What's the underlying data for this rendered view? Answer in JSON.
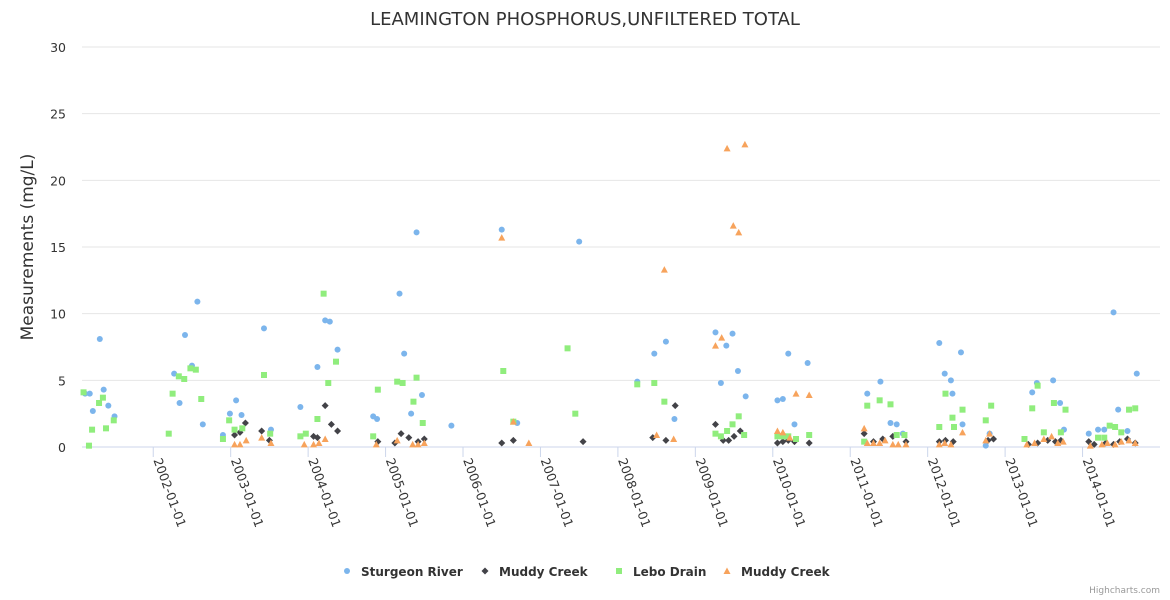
{
  "chart_data": {
    "type": "scatter",
    "title": "LEAMINGTON PHOSPHORUS,UNFILTERED TOTAL",
    "ylabel": "Measurements (mg/L)",
    "xlabel": "",
    "ylim": [
      0,
      30
    ],
    "y_ticks": [
      "0",
      "5",
      "10",
      "15",
      "20",
      "25",
      "30"
    ],
    "y_tick_values": [
      0,
      5,
      10,
      15,
      20,
      25,
      30
    ],
    "x_range": [
      2001.08,
      2015.0
    ],
    "x_ticks": [
      "2002-01-01",
      "2003-01-01",
      "2004-01-01",
      "2005-01-01",
      "2006-01-01",
      "2007-01-01",
      "2008-01-01",
      "2009-01-01",
      "2010-01-01",
      "2011-01-01",
      "2012-01-01",
      "2013-01-01",
      "2014-01-01"
    ],
    "x_tick_values": [
      2002,
      2003,
      2004,
      2005,
      2006,
      2007,
      2008,
      2009,
      2010,
      2011,
      2012,
      2013,
      2014
    ],
    "legend_position": "bottom-center",
    "credits": "Highcharts.com",
    "series": [
      {
        "name": "Sturgeon River",
        "color": "#7cb5ec",
        "marker": "circle",
        "points": [
          [
            2001.12,
            4.0
          ],
          [
            2001.18,
            4.0
          ],
          [
            2001.22,
            2.7
          ],
          [
            2001.31,
            8.1
          ],
          [
            2001.36,
            4.3
          ],
          [
            2001.42,
            3.1
          ],
          [
            2001.5,
            2.3
          ],
          [
            2002.27,
            5.5
          ],
          [
            2002.34,
            3.3
          ],
          [
            2002.41,
            8.4
          ],
          [
            2002.5,
            6.1
          ],
          [
            2002.57,
            10.9
          ],
          [
            2002.64,
            1.7
          ],
          [
            2002.9,
            0.9
          ],
          [
            2002.99,
            2.5
          ],
          [
            2003.07,
            3.5
          ],
          [
            2003.14,
            2.4
          ],
          [
            2003.43,
            8.9
          ],
          [
            2003.52,
            1.3
          ],
          [
            2003.9,
            3.0
          ],
          [
            2004.12,
            6.0
          ],
          [
            2004.22,
            9.5
          ],
          [
            2004.28,
            9.4
          ],
          [
            2004.38,
            7.3
          ],
          [
            2004.84,
            2.3
          ],
          [
            2004.89,
            2.1
          ],
          [
            2005.18,
            11.5
          ],
          [
            2005.24,
            7.0
          ],
          [
            2005.33,
            2.5
          ],
          [
            2005.4,
            16.1
          ],
          [
            2005.47,
            3.9
          ],
          [
            2005.85,
            1.6
          ],
          [
            2006.5,
            16.3
          ],
          [
            2006.7,
            1.8
          ],
          [
            2007.5,
            15.4
          ],
          [
            2008.25,
            4.9
          ],
          [
            2008.47,
            7.0
          ],
          [
            2008.62,
            7.9
          ],
          [
            2008.73,
            2.1
          ],
          [
            2009.26,
            8.6
          ],
          [
            2009.33,
            4.8
          ],
          [
            2009.4,
            7.6
          ],
          [
            2009.48,
            8.5
          ],
          [
            2009.55,
            5.7
          ],
          [
            2009.65,
            3.8
          ],
          [
            2010.06,
            3.5
          ],
          [
            2010.13,
            3.6
          ],
          [
            2010.2,
            7.0
          ],
          [
            2010.28,
            1.7
          ],
          [
            2010.45,
            6.3
          ],
          [
            2011.22,
            4.0
          ],
          [
            2011.39,
            4.9
          ],
          [
            2011.52,
            1.8
          ],
          [
            2011.6,
            1.7
          ],
          [
            2011.68,
            1.0
          ],
          [
            2012.15,
            7.8
          ],
          [
            2012.22,
            5.5
          ],
          [
            2012.3,
            5.0
          ],
          [
            2012.32,
            4.0
          ],
          [
            2012.43,
            7.1
          ],
          [
            2012.45,
            1.7
          ],
          [
            2012.75,
            0.1
          ],
          [
            2012.8,
            1.0
          ],
          [
            2013.35,
            4.1
          ],
          [
            2013.41,
            4.8
          ],
          [
            2013.62,
            5.0
          ],
          [
            2013.71,
            3.3
          ],
          [
            2013.76,
            1.3
          ],
          [
            2014.08,
            1.0
          ],
          [
            2014.2,
            1.3
          ],
          [
            2014.28,
            1.3
          ],
          [
            2014.4,
            10.1
          ],
          [
            2014.46,
            2.8
          ],
          [
            2014.58,
            1.2
          ],
          [
            2014.7,
            5.5
          ]
        ]
      },
      {
        "name": "Muddy Creek",
        "color": "#434348",
        "marker": "diamond",
        "points": [
          [
            2003.05,
            0.9
          ],
          [
            2003.12,
            1.1
          ],
          [
            2003.19,
            1.8
          ],
          [
            2003.4,
            1.2
          ],
          [
            2003.5,
            0.5
          ],
          [
            2004.07,
            0.8
          ],
          [
            2004.12,
            0.7
          ],
          [
            2004.22,
            3.1
          ],
          [
            2004.3,
            1.7
          ],
          [
            2004.38,
            1.2
          ],
          [
            2004.9,
            0.4
          ],
          [
            2005.12,
            0.3
          ],
          [
            2005.2,
            1.0
          ],
          [
            2005.3,
            0.7
          ],
          [
            2005.42,
            0.4
          ],
          [
            2005.5,
            0.6
          ],
          [
            2006.5,
            0.3
          ],
          [
            2006.65,
            0.5
          ],
          [
            2007.55,
            0.4
          ],
          [
            2008.45,
            0.7
          ],
          [
            2008.62,
            0.5
          ],
          [
            2008.74,
            3.1
          ],
          [
            2009.26,
            1.7
          ],
          [
            2009.36,
            0.5
          ],
          [
            2009.43,
            0.5
          ],
          [
            2009.5,
            0.8
          ],
          [
            2009.58,
            1.2
          ],
          [
            2010.06,
            0.3
          ],
          [
            2010.13,
            0.4
          ],
          [
            2010.2,
            0.5
          ],
          [
            2010.28,
            0.4
          ],
          [
            2010.47,
            0.3
          ],
          [
            2011.18,
            1.0
          ],
          [
            2011.3,
            0.4
          ],
          [
            2011.42,
            0.6
          ],
          [
            2011.55,
            0.8
          ],
          [
            2011.72,
            0.4
          ],
          [
            2012.15,
            0.4
          ],
          [
            2012.23,
            0.5
          ],
          [
            2012.33,
            0.4
          ],
          [
            2012.78,
            0.5
          ],
          [
            2012.85,
            0.6
          ],
          [
            2013.3,
            0.2
          ],
          [
            2013.42,
            0.3
          ],
          [
            2013.55,
            0.5
          ],
          [
            2013.65,
            0.4
          ],
          [
            2013.72,
            0.5
          ],
          [
            2014.08,
            0.4
          ],
          [
            2014.15,
            0.2
          ],
          [
            2014.3,
            0.3
          ],
          [
            2014.4,
            0.2
          ],
          [
            2014.48,
            0.4
          ],
          [
            2014.58,
            0.6
          ],
          [
            2014.68,
            0.3
          ]
        ]
      },
      {
        "name": "Lebo Drain",
        "color": "#90ed7d",
        "marker": "square",
        "points": [
          [
            2001.1,
            4.1
          ],
          [
            2001.17,
            0.1
          ],
          [
            2001.21,
            1.3
          ],
          [
            2001.3,
            3.3
          ],
          [
            2001.35,
            3.7
          ],
          [
            2001.39,
            1.4
          ],
          [
            2001.49,
            2.0
          ],
          [
            2002.2,
            1.0
          ],
          [
            2002.25,
            4.0
          ],
          [
            2002.33,
            5.3
          ],
          [
            2002.4,
            5.1
          ],
          [
            2002.48,
            5.9
          ],
          [
            2002.55,
            5.8
          ],
          [
            2002.62,
            3.6
          ],
          [
            2002.9,
            0.6
          ],
          [
            2002.98,
            2.0
          ],
          [
            2003.05,
            1.3
          ],
          [
            2003.15,
            1.4
          ],
          [
            2003.43,
            5.4
          ],
          [
            2003.51,
            1.0
          ],
          [
            2003.9,
            0.8
          ],
          [
            2003.97,
            1.0
          ],
          [
            2004.12,
            2.1
          ],
          [
            2004.2,
            11.5
          ],
          [
            2004.26,
            4.8
          ],
          [
            2004.36,
            6.4
          ],
          [
            2004.84,
            0.8
          ],
          [
            2004.9,
            4.3
          ],
          [
            2005.15,
            4.9
          ],
          [
            2005.22,
            4.8
          ],
          [
            2005.36,
            3.4
          ],
          [
            2005.4,
            5.2
          ],
          [
            2005.48,
            1.8
          ],
          [
            2006.52,
            5.7
          ],
          [
            2006.65,
            1.9
          ],
          [
            2007.35,
            7.4
          ],
          [
            2007.45,
            2.5
          ],
          [
            2008.25,
            4.7
          ],
          [
            2008.47,
            4.8
          ],
          [
            2008.6,
            3.4
          ],
          [
            2009.26,
            1.0
          ],
          [
            2009.33,
            0.8
          ],
          [
            2009.41,
            1.2
          ],
          [
            2009.48,
            1.7
          ],
          [
            2009.56,
            2.3
          ],
          [
            2009.63,
            0.9
          ],
          [
            2010.06,
            0.8
          ],
          [
            2010.13,
            0.8
          ],
          [
            2010.2,
            0.8
          ],
          [
            2010.3,
            0.6
          ],
          [
            2010.47,
            0.9
          ],
          [
            2011.18,
            0.4
          ],
          [
            2011.22,
            3.1
          ],
          [
            2011.38,
            3.5
          ],
          [
            2011.52,
            3.2
          ],
          [
            2011.6,
            0.9
          ],
          [
            2011.7,
            0.9
          ],
          [
            2012.15,
            1.5
          ],
          [
            2012.23,
            4.0
          ],
          [
            2012.32,
            2.2
          ],
          [
            2012.34,
            1.5
          ],
          [
            2012.45,
            2.8
          ],
          [
            2012.75,
            2.0
          ],
          [
            2012.82,
            3.1
          ],
          [
            2013.25,
            0.6
          ],
          [
            2013.35,
            2.9
          ],
          [
            2013.42,
            4.6
          ],
          [
            2013.5,
            1.1
          ],
          [
            2013.63,
            3.3
          ],
          [
            2013.72,
            1.1
          ],
          [
            2013.78,
            2.8
          ],
          [
            2014.2,
            0.7
          ],
          [
            2014.28,
            0.7
          ],
          [
            2014.35,
            1.6
          ],
          [
            2014.42,
            1.5
          ],
          [
            2014.5,
            1.1
          ],
          [
            2014.6,
            2.8
          ],
          [
            2014.68,
            2.9
          ]
        ]
      },
      {
        "name": "Muddy Creek",
        "color": "#f7a35c",
        "marker": "triangle",
        "points": [
          [
            2003.05,
            0.2
          ],
          [
            2003.12,
            0.2
          ],
          [
            2003.2,
            0.5
          ],
          [
            2003.4,
            0.7
          ],
          [
            2003.52,
            0.3
          ],
          [
            2003.95,
            0.2
          ],
          [
            2004.07,
            0.2
          ],
          [
            2004.14,
            0.3
          ],
          [
            2004.22,
            0.6
          ],
          [
            2004.88,
            0.2
          ],
          [
            2005.15,
            0.5
          ],
          [
            2005.35,
            0.2
          ],
          [
            2005.42,
            0.2
          ],
          [
            2005.5,
            0.3
          ],
          [
            2006.5,
            15.7
          ],
          [
            2006.65,
            1.9
          ],
          [
            2006.85,
            0.3
          ],
          [
            2008.5,
            0.9
          ],
          [
            2008.6,
            13.3
          ],
          [
            2008.72,
            0.6
          ],
          [
            2009.26,
            7.6
          ],
          [
            2009.34,
            8.2
          ],
          [
            2009.41,
            22.4
          ],
          [
            2009.49,
            16.6
          ],
          [
            2009.56,
            16.1
          ],
          [
            2009.64,
            22.7
          ],
          [
            2010.06,
            1.2
          ],
          [
            2010.13,
            1.1
          ],
          [
            2010.22,
            0.7
          ],
          [
            2010.3,
            4.0
          ],
          [
            2010.47,
            3.9
          ],
          [
            2011.18,
            1.4
          ],
          [
            2011.22,
            0.3
          ],
          [
            2011.3,
            0.3
          ],
          [
            2011.38,
            0.3
          ],
          [
            2011.45,
            0.5
          ],
          [
            2011.55,
            0.2
          ],
          [
            2011.62,
            0.2
          ],
          [
            2011.72,
            0.2
          ],
          [
            2012.15,
            0.2
          ],
          [
            2012.22,
            0.3
          ],
          [
            2012.3,
            0.2
          ],
          [
            2012.45,
            1.1
          ],
          [
            2012.75,
            0.5
          ],
          [
            2012.8,
            1.0
          ],
          [
            2013.28,
            0.2
          ],
          [
            2013.38,
            0.3
          ],
          [
            2013.5,
            0.6
          ],
          [
            2013.6,
            0.8
          ],
          [
            2013.68,
            0.3
          ],
          [
            2013.75,
            0.4
          ],
          [
            2014.1,
            0.1
          ],
          [
            2014.25,
            0.2
          ],
          [
            2014.32,
            0.3
          ],
          [
            2014.42,
            0.2
          ],
          [
            2014.5,
            0.4
          ],
          [
            2014.6,
            0.5
          ],
          [
            2014.68,
            0.3
          ]
        ]
      }
    ]
  }
}
